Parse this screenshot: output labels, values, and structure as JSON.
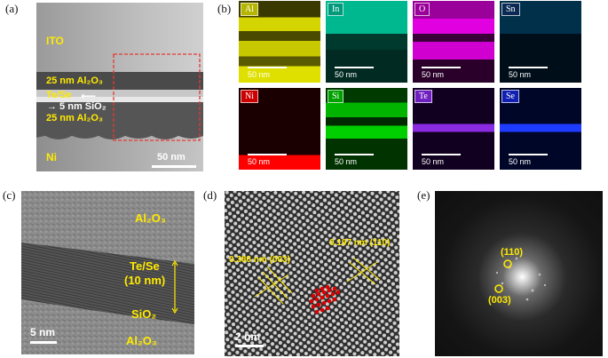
{
  "panel_labels": [
    "(a)",
    "(b)",
    "(c)",
    "(d)",
    "(e)"
  ],
  "panel_a": {
    "labels": [
      "ITO",
      "25 nm Al₂O₃",
      "Te/Se",
      "→ 5 nm SiO₂",
      "25 nm Al₂O₃",
      "Ni"
    ],
    "scale_bar": "50 nm",
    "box_color": "#e53935"
  },
  "panel_b": {
    "maps": [
      {
        "el": "Al",
        "color": "#e0e000",
        "tagbg": "#b5b500",
        "scale": "50 nm"
      },
      {
        "el": "In",
        "color": "#00c8a0",
        "tagbg": "#009a7a",
        "scale": "50 nm"
      },
      {
        "el": "O",
        "color": "#d000d0",
        "tagbg": "#9a009a",
        "scale": "50 nm"
      },
      {
        "el": "Sn",
        "color": "#0078c8",
        "tagbg": "#0a2a55",
        "scale": "50 nm"
      },
      {
        "el": "Ni",
        "color": "#ff0000",
        "tagbg": "#cc0000",
        "scale": "50 nm"
      },
      {
        "el": "Si",
        "color": "#00c800",
        "tagbg": "#00a000",
        "scale": "50 nm"
      },
      {
        "el": "Te",
        "color": "#8a2be2",
        "tagbg": "#7020c0",
        "scale": "50 nm"
      },
      {
        "el": "Se",
        "color": "#1e3cff",
        "tagbg": "#1020b0",
        "scale": "50 nm"
      }
    ]
  },
  "panel_c": {
    "labels": [
      "Al₂O₃",
      "Te/Se",
      "(10 nm)",
      "SiO₂",
      "Al₂O₃"
    ],
    "scale_bar": "5 nm"
  },
  "panel_d": {
    "labels": [
      "0.386 nm (003)",
      "0.197 nm (110)"
    ],
    "scale_bar": "2 nm"
  },
  "panel_e": {
    "labels": [
      "(110)",
      "(003)"
    ]
  },
  "colors": {
    "annotation": "#ffea00",
    "atom_model": "#e00000"
  }
}
